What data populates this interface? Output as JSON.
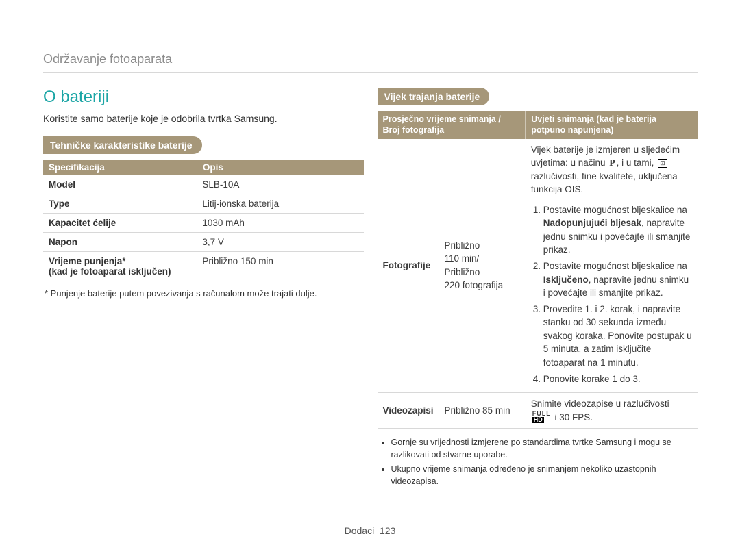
{
  "header": {
    "breadcrumb": "Održavanje fotoaparata"
  },
  "left": {
    "title": "O bateriji",
    "intro": "Koristite samo baterije koje je odobrila tvrtka Samsung.",
    "pill": "Tehničke karakteristike baterije",
    "spec_headers": [
      "Specifikacija",
      "Opis"
    ],
    "spec_rows": [
      {
        "k": "Model",
        "v": "SLB-10A"
      },
      {
        "k": "Type",
        "v": "Litij-ionska baterija"
      },
      {
        "k": "Kapacitet ćelije",
        "v": "1030 mAh"
      },
      {
        "k": "Napon",
        "v": "3,7 V"
      },
      {
        "k": "Vrijeme punjenja*\n(kad je fotoaparat isključen)",
        "v": "Približno 150 min"
      }
    ],
    "footnote": "* Punjenje baterije putem povezivanja s računalom može trajati dulje."
  },
  "right": {
    "pill": "Vijek trajanja baterije",
    "life_headers": [
      "Prosječno vrijeme snimanja / Broj fotografija",
      "Uvjeti snimanja (kad je baterija potpuno napunjena)"
    ],
    "photo": {
      "label": "Fotografije",
      "mid": "Približno\n110 min/\nPribližno\n220 fotografija",
      "intro_a": "Vijek baterije je izmjeren u sljedećim uvjetima: u načinu ",
      "intro_b": ", i u tami, ",
      "intro_c": " razlučivosti, fine kvalitete, uključena funkcija OIS.",
      "steps": [
        "Postavite mogućnost bljeskalice na <b>Nadopunjujući bljesak</b>, napravite jednu snimku i povećajte ili smanjite prikaz.",
        "Postavite mogućnost bljeskalice na <b>Isključeno</b>, napravite jednu snimku i povećajte ili smanjite prikaz.",
        "Provedite 1. i 2. korak, i napravite stanku od 30 sekunda između svakog koraka. Ponovite postupak u 5 minuta, a zatim isključite fotoaparat na 1 minutu.",
        "Ponovite korake 1 do 3."
      ]
    },
    "video": {
      "label": "Videozapisi",
      "mid": "Približno 85 min",
      "desc_a": "Snimite videozapise u razlučivosti ",
      "desc_b": " i 30 FPS."
    },
    "bullets": [
      "Gornje su vrijednosti izmjerene po standardima tvrtke Samsung i mogu se razlikovati od stvarne uporabe.",
      "Ukupno vrijeme snimanja određeno je snimanjem nekoliko uzastopnih videozapisa."
    ]
  },
  "footer": {
    "label": "Dodaci",
    "page": "123"
  }
}
